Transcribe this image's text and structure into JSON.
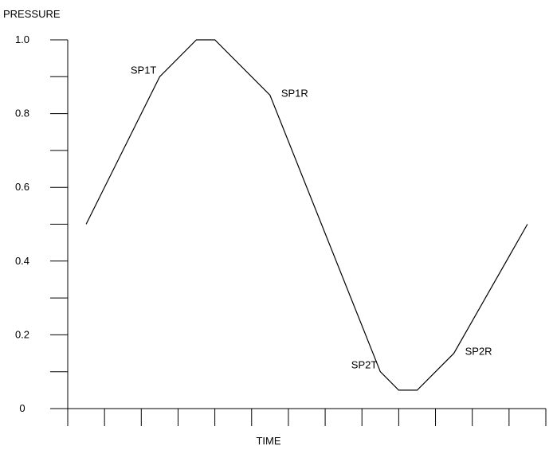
{
  "chart_data": {
    "type": "line",
    "ylabel": "PRESSURE",
    "xlabel": "TIME",
    "ylim": [
      0,
      1.0
    ],
    "y_ticks": [
      {
        "value": 0,
        "label": "0"
      },
      {
        "value": 0.2,
        "label": "0.2"
      },
      {
        "value": 0.4,
        "label": "0.4"
      },
      {
        "value": 0.6,
        "label": "0.6"
      },
      {
        "value": 0.8,
        "label": "0.8"
      },
      {
        "value": 1.0,
        "label": "1.0"
      }
    ],
    "y_minor_step": 0.1,
    "x_tick_count": 13,
    "x_tick_labels": [],
    "grid": false,
    "legend": "none",
    "series": [
      {
        "points": [
          [
            0.5,
            0.5
          ],
          [
            2.5,
            0.9
          ],
          [
            3.5,
            1.0
          ],
          [
            4.0,
            1.0
          ],
          [
            5.5,
            0.85
          ],
          [
            8.5,
            0.1
          ],
          [
            9.0,
            0.05
          ],
          [
            9.5,
            0.05
          ],
          [
            10.5,
            0.15
          ],
          [
            12.5,
            0.5
          ]
        ]
      }
    ],
    "xlim": [
      0,
      13
    ],
    "annotations": [
      {
        "text": "SP1T",
        "x": 2.5,
        "y": 0.9,
        "anchor": "left-above"
      },
      {
        "text": "SP1R",
        "x": 5.5,
        "y": 0.85,
        "anchor": "right-above"
      },
      {
        "text": "SP2T",
        "x": 8.5,
        "y": 0.1,
        "anchor": "left-above"
      },
      {
        "text": "SP2R",
        "x": 10.5,
        "y": 0.15,
        "anchor": "right-above"
      }
    ]
  }
}
